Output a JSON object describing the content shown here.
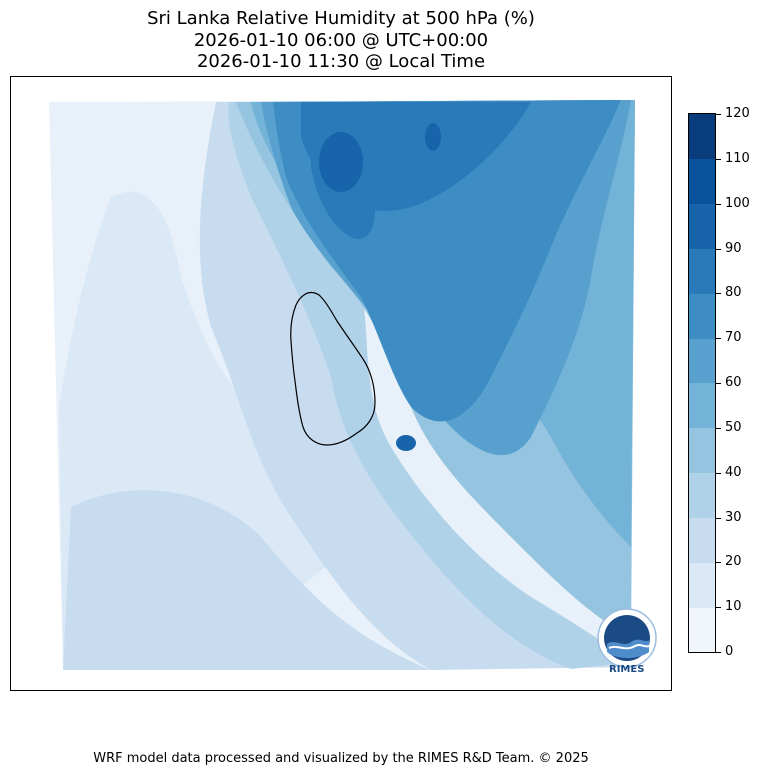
{
  "title": {
    "line1": "Sri Lanka Relative Humidity at 500 hPa (%)",
    "line2": "2026-01-10 06:00 @ UTC+00:00",
    "line3": "2026-01-10 11:30 @ Local Time"
  },
  "colorbar": {
    "ticks": [
      "0",
      "10",
      "20",
      "30",
      "40",
      "50",
      "60",
      "70",
      "80",
      "90",
      "100",
      "110",
      "120"
    ],
    "colors": [
      "#f0f6fc",
      "#dbe9f6",
      "#c8dcf0",
      "#b0d2e8",
      "#94c4df",
      "#74b3d8",
      "#58a1cf",
      "#3d8dc4",
      "#2a79b8",
      "#1764ab",
      "#08529c",
      "#083c7d"
    ]
  },
  "logo": {
    "name": "RIMES"
  },
  "footer": "WRF model data processed and visualized by the RIMES R&D Team. © 2025"
}
